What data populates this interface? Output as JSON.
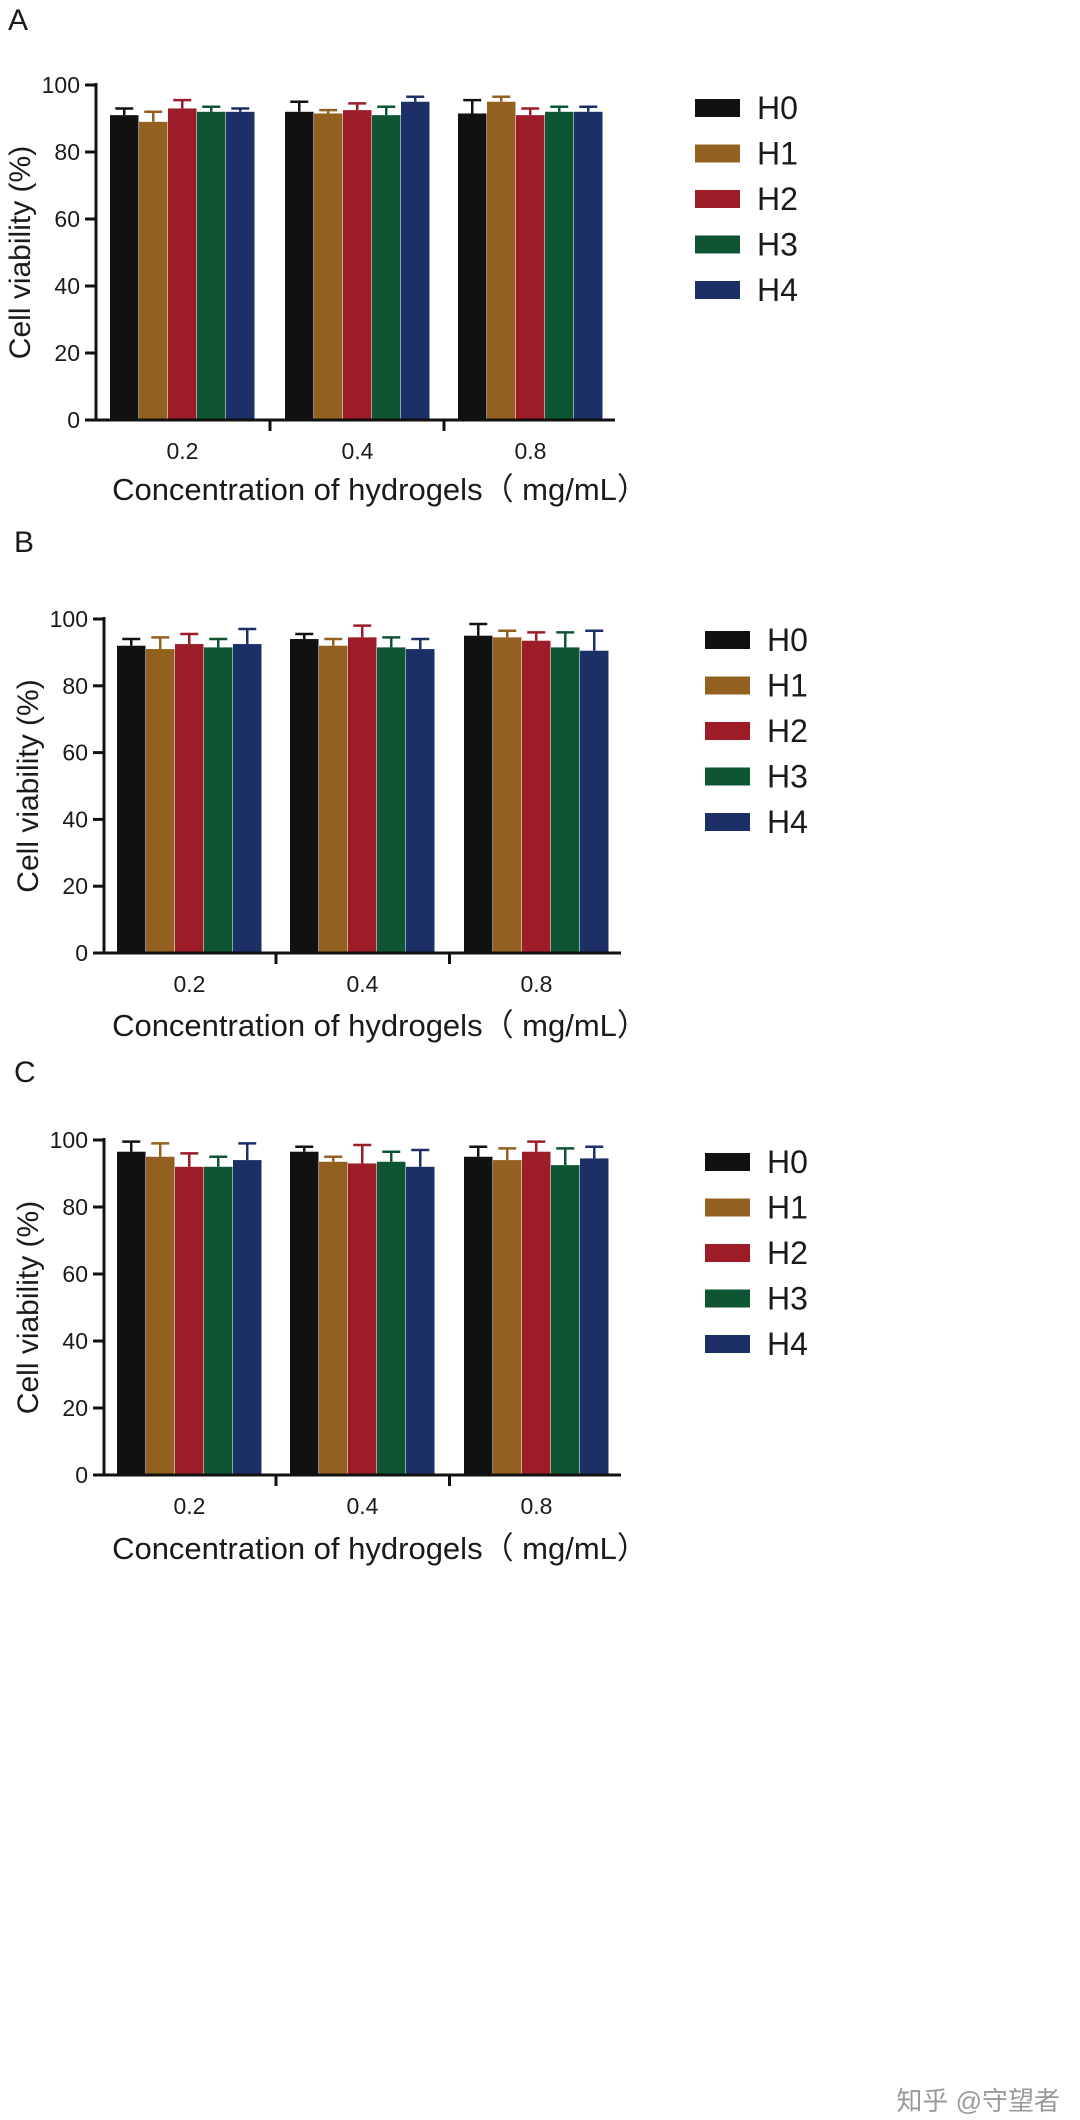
{
  "colors": {
    "H0": "#111111",
    "H1": "#93611f",
    "H2": "#9c1d28",
    "H3": "#0d5533",
    "H4": "#1c2f66"
  },
  "chart_data": [
    {
      "panel": "A",
      "type": "bar",
      "xlabel": "Concentration of hydrogels（ mg/mL）",
      "ylabel": "Cell viability (%)",
      "ylim": [
        0,
        100
      ],
      "yticks": [
        "0",
        "20",
        "40",
        "60",
        "80",
        "100"
      ],
      "categories": [
        "0.2",
        "0.4",
        "0.8"
      ],
      "legend_position": "right",
      "series": [
        {
          "name": "H0",
          "values": [
            91,
            92,
            91.5
          ],
          "errors": [
            2,
            3,
            4
          ]
        },
        {
          "name": "H1",
          "values": [
            89,
            91.5,
            95
          ],
          "errors": [
            3,
            1,
            1.5
          ]
        },
        {
          "name": "H2",
          "values": [
            93,
            92.5,
            91
          ],
          "errors": [
            2.5,
            2,
            2
          ]
        },
        {
          "name": "H3",
          "values": [
            92,
            91,
            92
          ],
          "errors": [
            1.5,
            2.5,
            1.5
          ]
        },
        {
          "name": "H4",
          "values": [
            92,
            95,
            92
          ],
          "errors": [
            1,
            1.5,
            1.5
          ]
        }
      ]
    },
    {
      "panel": "B",
      "type": "bar",
      "xlabel": "Concentration of hydrogels（ mg/mL）",
      "ylabel": "Cell viability (%)",
      "ylim": [
        0,
        100
      ],
      "yticks": [
        "0",
        "20",
        "40",
        "60",
        "80",
        "100"
      ],
      "categories": [
        "0.2",
        "0.4",
        "0.8"
      ],
      "legend_position": "right",
      "series": [
        {
          "name": "H0",
          "values": [
            92,
            94,
            95
          ],
          "errors": [
            2,
            1.5,
            3.5
          ]
        },
        {
          "name": "H1",
          "values": [
            91,
            92,
            94.5
          ],
          "errors": [
            3.5,
            2,
            2
          ]
        },
        {
          "name": "H2",
          "values": [
            92.5,
            94.5,
            93.5
          ],
          "errors": [
            3,
            3.5,
            2.5
          ]
        },
        {
          "name": "H3",
          "values": [
            91.5,
            91.5,
            91.5
          ],
          "errors": [
            2.5,
            3,
            4.5
          ]
        },
        {
          "name": "H4",
          "values": [
            92.5,
            91,
            90.5
          ],
          "errors": [
            4.5,
            3,
            6
          ]
        }
      ]
    },
    {
      "panel": "C",
      "type": "bar",
      "xlabel": "Concentration of hydrogels（ mg/mL）",
      "ylabel": "Cell viability (%)",
      "ylim": [
        0,
        100
      ],
      "yticks": [
        "0",
        "20",
        "40",
        "60",
        "80",
        "100"
      ],
      "categories": [
        "0.2",
        "0.4",
        "0.8"
      ],
      "legend_position": "right",
      "series": [
        {
          "name": "H0",
          "values": [
            96.5,
            96.5,
            95
          ],
          "errors": [
            3,
            1.5,
            3
          ]
        },
        {
          "name": "H1",
          "values": [
            95,
            93.5,
            94
          ],
          "errors": [
            4,
            1.5,
            3.5
          ]
        },
        {
          "name": "H2",
          "values": [
            92,
            93,
            96.5
          ],
          "errors": [
            4,
            5.5,
            3
          ]
        },
        {
          "name": "H3",
          "values": [
            92,
            93.5,
            92.5
          ],
          "errors": [
            3,
            3,
            5
          ]
        },
        {
          "name": "H4",
          "values": [
            94,
            92,
            94.5
          ],
          "errors": [
            5,
            5,
            3.5
          ]
        }
      ]
    }
  ],
  "watermark": "知乎 @守望者"
}
